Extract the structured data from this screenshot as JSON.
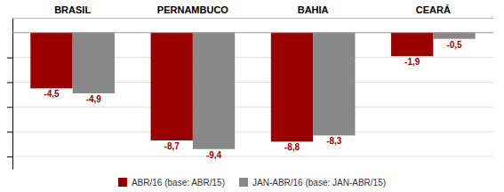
{
  "chart_data": {
    "type": "bar",
    "categories": [
      "BRASIL",
      "PERNAMBUCO",
      "BAHIA",
      "CEARÁ"
    ],
    "series": [
      {
        "name": "ABR/16 (base: ABR/15)",
        "color": "#9B0000",
        "values": [
          -4.5,
          -8.7,
          -8.8,
          -1.9
        ],
        "value_labels": [
          "-4,5",
          "-8,7",
          "-8,8",
          "-1,9"
        ]
      },
      {
        "name": "JAN-ABR/16 (base: JAN-ABR/15)",
        "color": "#888888",
        "values": [
          -4.9,
          -9.4,
          -8.3,
          -0.5
        ],
        "value_labels": [
          "-4,9",
          "-9,4",
          "-8,3",
          "-0,5"
        ]
      }
    ],
    "ylim": [
      -11.0,
      1.2
    ],
    "yticks": [
      -10,
      -8,
      -6,
      -4,
      -2
    ],
    "grid": true,
    "legend": "bottom",
    "data_labels": true,
    "tick_labels": "x"
  }
}
